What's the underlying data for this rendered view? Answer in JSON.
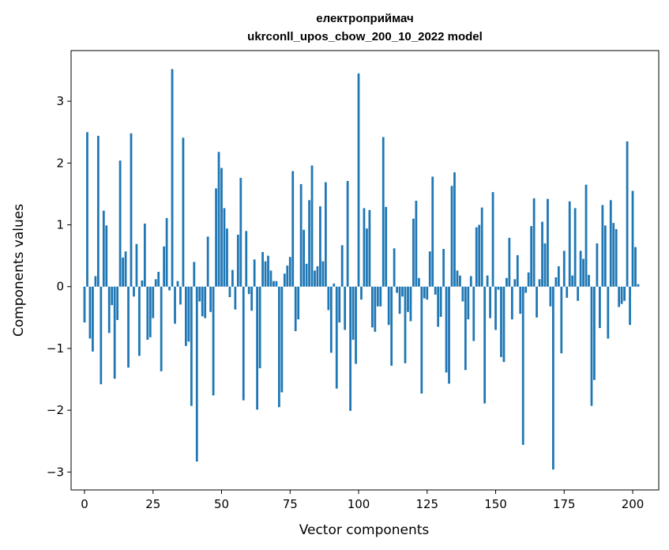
{
  "chart_data": {
    "type": "bar",
    "title_line1": "електроприймач",
    "title_line2": "ukrconll_upos_cbow_200_10_2022 model",
    "xlabel": "Vector components",
    "ylabel": "Components values",
    "xlim": [
      -4.9,
      209.5
    ],
    "ylim": [
      -3.29,
      3.82
    ],
    "xticks": [
      0,
      25,
      50,
      75,
      100,
      125,
      150,
      175,
      200
    ],
    "yticks": [
      -3,
      -2,
      -1,
      0,
      1,
      2,
      3
    ],
    "ytick_labels": [
      "−3",
      "−2",
      "−1",
      "0",
      "1",
      "2",
      "3"
    ],
    "bar_color": "#1f77b4",
    "grid": false,
    "values": [
      -0.58,
      2.5,
      -0.84,
      -1.05,
      0.17,
      2.44,
      -1.58,
      1.23,
      0.99,
      -0.75,
      -0.3,
      -1.49,
      -0.54,
      2.04,
      0.47,
      0.57,
      -1.31,
      2.48,
      -0.16,
      0.69,
      -1.12,
      0.1,
      1.02,
      -0.86,
      -0.82,
      -0.51,
      0.12,
      0.24,
      -1.37,
      0.65,
      1.11,
      -0.06,
      3.52,
      -0.6,
      0.09,
      -0.29,
      2.41,
      -0.96,
      -0.89,
      -1.93,
      0.4,
      -2.83,
      -0.24,
      -0.48,
      -0.51,
      0.81,
      -0.41,
      -1.76,
      1.59,
      2.18,
      1.92,
      1.27,
      0.94,
      -0.17,
      0.27,
      -0.37,
      0.84,
      1.76,
      -1.84,
      0.9,
      -0.12,
      -0.39,
      0.44,
      -1.99,
      -1.32,
      0.56,
      0.41,
      0.5,
      0.26,
      0.09,
      0.09,
      -1.95,
      -1.71,
      0.21,
      0.34,
      0.48,
      1.87,
      -0.72,
      -0.53,
      1.66,
      0.92,
      0.37,
      1.4,
      1.96,
      0.26,
      0.33,
      1.3,
      0.41,
      1.69,
      -0.38,
      -1.07,
      0.05,
      -1.65,
      -0.58,
      0.67,
      -0.7,
      1.71,
      -2.01,
      -0.86,
      -1.25,
      3.45,
      -0.21,
      1.27,
      0.94,
      1.24,
      -0.66,
      -0.73,
      -0.32,
      -0.32,
      2.42,
      1.29,
      -0.62,
      -1.28,
      0.62,
      -0.1,
      -0.44,
      -0.16,
      -1.24,
      -0.41,
      -0.56,
      1.1,
      1.39,
      0.14,
      -1.73,
      -0.19,
      -0.21,
      0.57,
      1.78,
      -0.13,
      -0.65,
      -0.49,
      0.61,
      -1.39,
      -1.57,
      1.63,
      1.85,
      0.26,
      0.18,
      -0.24,
      -1.35,
      -0.53,
      0.17,
      -0.88,
      0.96,
      1.0,
      1.28,
      -1.89,
      0.18,
      -0.51,
      1.53,
      -0.7,
      -0.05,
      -1.14,
      -1.22,
      0.14,
      0.79,
      -0.53,
      0.12,
      0.51,
      -0.44,
      -2.56,
      -0.1,
      0.23,
      0.98,
      1.43,
      -0.5,
      0.12,
      1.05,
      0.7,
      1.42,
      -0.32,
      -2.96,
      0.15,
      0.33,
      -1.08,
      0.58,
      -0.18,
      1.38,
      0.18,
      1.27,
      -0.23,
      0.58,
      0.45,
      1.65,
      0.19,
      -1.93,
      -1.51,
      0.7,
      -0.67,
      1.32,
      0.99,
      -0.84,
      1.4,
      1.03,
      0.93,
      -0.33,
      -0.28,
      -0.23,
      2.35,
      -0.62,
      1.55,
      0.64,
      0.04
    ]
  }
}
